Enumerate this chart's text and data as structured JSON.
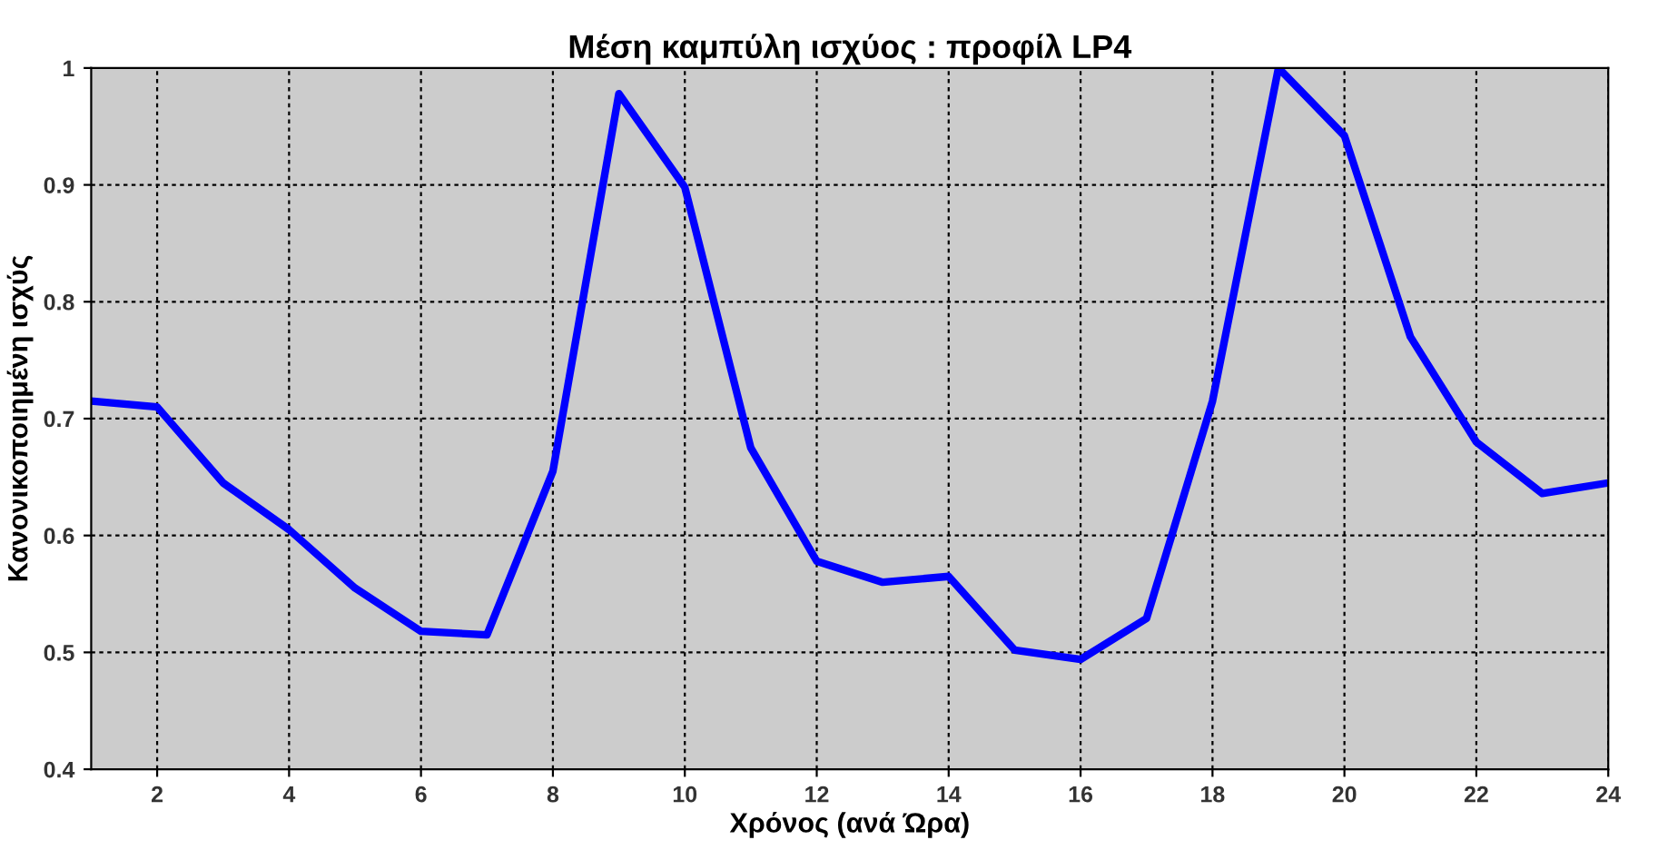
{
  "chart_data": {
    "type": "line",
    "title": "Μέση καμπύλη ισχύος : προφίλ LP4",
    "xlabel": "Χρόνος (ανά Ώρα)",
    "ylabel": "Κανονικοποιημένη ισχύς",
    "x": [
      1,
      2,
      3,
      4,
      5,
      6,
      7,
      8,
      9,
      10,
      11,
      12,
      13,
      14,
      15,
      16,
      17,
      18,
      19,
      20,
      21,
      22,
      23,
      24
    ],
    "series": [
      {
        "color": "#0000ff",
        "values": [
          0.715,
          0.71,
          0.645,
          0.605,
          0.555,
          0.518,
          0.515,
          0.655,
          0.978,
          0.898,
          0.675,
          0.578,
          0.56,
          0.565,
          0.502,
          0.494,
          0.529,
          0.715,
          1.0,
          0.942,
          0.77,
          0.68,
          0.636,
          0.645
        ]
      }
    ],
    "xlim": [
      1,
      24
    ],
    "xticks": [
      2,
      4,
      6,
      8,
      10,
      12,
      14,
      16,
      18,
      20,
      22,
      24
    ],
    "ylim": [
      0.4,
      1
    ],
    "yticks": [
      0.4,
      0.5,
      0.6,
      0.7,
      0.8,
      0.9,
      1
    ],
    "grid": true,
    "line_style": "solid",
    "marker": "none"
  }
}
